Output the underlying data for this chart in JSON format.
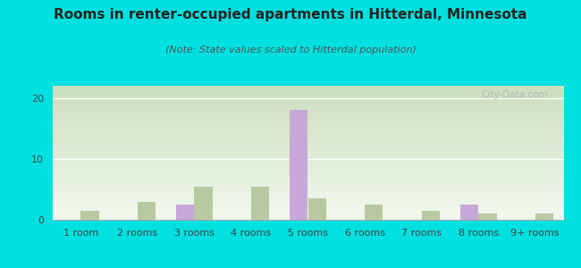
{
  "title": "Rooms in renter-occupied apartments in Hitterdal, Minnesota",
  "subtitle": "(Note: State values scaled to Hitterdal population)",
  "categories": [
    "1 room",
    "2 rooms",
    "3 rooms",
    "4 rooms",
    "5 rooms",
    "6 rooms",
    "7 rooms",
    "8 rooms",
    "9+ rooms"
  ],
  "hitterdal": [
    0,
    0,
    2.5,
    0,
    18.0,
    0,
    0,
    2.5,
    0
  ],
  "minnesota": [
    1.5,
    3.0,
    5.5,
    5.5,
    3.5,
    2.5,
    1.5,
    1.0,
    1.0
  ],
  "hitterdal_color": "#c8a8d8",
  "minnesota_color": "#b8c8a0",
  "background_color": "#00e0e0",
  "grad_top": "#ccdfc0",
  "grad_bottom": "#f2f8ee",
  "ylim": [
    0,
    22
  ],
  "yticks": [
    0,
    10,
    20
  ],
  "title_fontsize": 11,
  "subtitle_fontsize": 8,
  "tick_fontsize": 8,
  "legend_fontsize": 9,
  "bar_width": 0.32,
  "watermark": "City-Data.com"
}
